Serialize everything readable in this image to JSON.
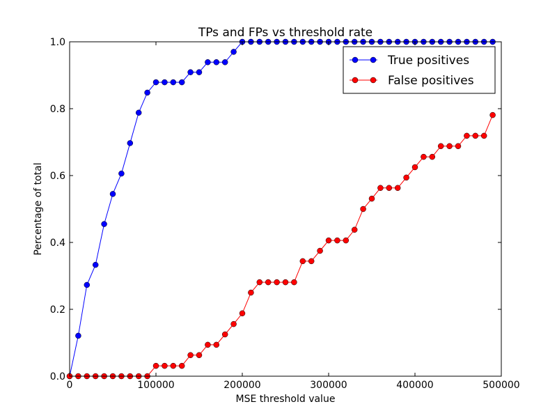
{
  "chart_data": {
    "type": "line",
    "title": "TPs and FPs vs threshold rate",
    "xlabel": "MSE threshold value",
    "ylabel": "Percentage of total",
    "xlim": [
      0,
      500000
    ],
    "ylim": [
      0.0,
      1.0
    ],
    "x_ticks": [
      0,
      100000,
      200000,
      300000,
      400000,
      500000
    ],
    "x_tick_labels": [
      "0",
      "100000",
      "200000",
      "300000",
      "400000",
      "500000"
    ],
    "y_ticks": [
      0.0,
      0.2,
      0.4,
      0.6,
      0.8,
      1.0
    ],
    "y_tick_labels": [
      "0.0",
      "0.2",
      "0.4",
      "0.6",
      "0.8",
      "1.0"
    ],
    "grid": false,
    "legend_position": "top-right",
    "x": [
      0,
      10000,
      20000,
      30000,
      40000,
      50000,
      60000,
      70000,
      80000,
      90000,
      100000,
      110000,
      120000,
      130000,
      140000,
      150000,
      160000,
      170000,
      180000,
      190000,
      200000,
      210000,
      220000,
      230000,
      240000,
      250000,
      260000,
      270000,
      280000,
      290000,
      300000,
      310000,
      320000,
      330000,
      340000,
      350000,
      360000,
      370000,
      380000,
      390000,
      400000,
      410000,
      420000,
      430000,
      440000,
      450000,
      460000,
      470000,
      480000,
      490000
    ],
    "series": [
      {
        "name": "True positives",
        "color": "#0000ff",
        "values": [
          0.0,
          0.121,
          0.273,
          0.333,
          0.455,
          0.545,
          0.606,
          0.697,
          0.788,
          0.848,
          0.879,
          0.879,
          0.879,
          0.879,
          0.909,
          0.909,
          0.939,
          0.939,
          0.939,
          0.97,
          1.0,
          1.0,
          1.0,
          1.0,
          1.0,
          1.0,
          1.0,
          1.0,
          1.0,
          1.0,
          1.0,
          1.0,
          1.0,
          1.0,
          1.0,
          1.0,
          1.0,
          1.0,
          1.0,
          1.0,
          1.0,
          1.0,
          1.0,
          1.0,
          1.0,
          1.0,
          1.0,
          1.0,
          1.0,
          1.0
        ]
      },
      {
        "name": "False positives",
        "color": "#ff0000",
        "values": [
          0.0,
          0.0,
          0.0,
          0.0,
          0.0,
          0.0,
          0.0,
          0.0,
          0.0,
          0.0,
          0.031,
          0.031,
          0.031,
          0.031,
          0.063,
          0.063,
          0.094,
          0.094,
          0.125,
          0.156,
          0.188,
          0.25,
          0.281,
          0.281,
          0.281,
          0.281,
          0.281,
          0.344,
          0.344,
          0.375,
          0.406,
          0.406,
          0.406,
          0.438,
          0.5,
          0.531,
          0.563,
          0.563,
          0.563,
          0.594,
          0.625,
          0.656,
          0.656,
          0.688,
          0.688,
          0.688,
          0.719,
          0.719,
          0.719,
          0.781
        ]
      }
    ]
  }
}
